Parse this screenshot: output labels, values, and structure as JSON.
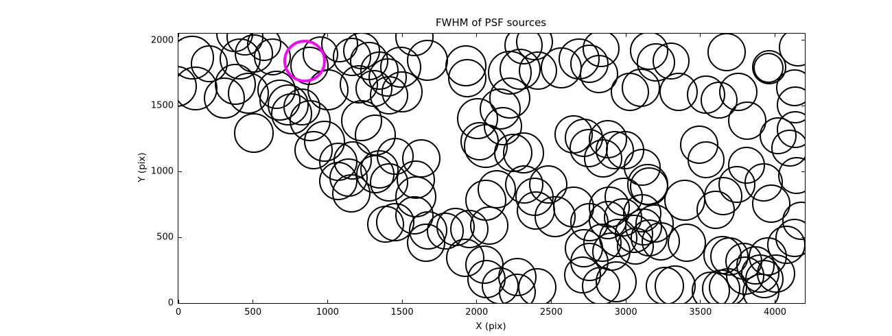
{
  "chart_data": {
    "type": "scatter",
    "title": "FWHM of PSF sources",
    "xlabel": "X (pix)",
    "ylabel": "Y (pix)",
    "xlim": [
      0,
      4200
    ],
    "ylim": [
      0,
      2050
    ],
    "xticks": [
      0,
      500,
      1000,
      1500,
      2000,
      2500,
      3000,
      3500,
      4000
    ],
    "yticks": [
      0,
      500,
      1000,
      1500,
      2000
    ],
    "grid": false,
    "legend": "none",
    "marker_style": "open-circle",
    "circle_color": "#000000",
    "circle_linewidth": 2.5,
    "highlight_color": "#ff00ff",
    "highlight_linewidth": 4.5,
    "axes_color": "#000000",
    "background_color": "#ffffff",
    "tick_length": 5,
    "highlight": {
      "x": 846,
      "y": 1841,
      "r": 143
    },
    "circles": [
      [
        92,
        1867,
        147
      ],
      [
        207,
        1820,
        124
      ],
      [
        115,
        1633,
        147
      ],
      [
        -14,
        1648,
        138
      ],
      [
        414,
        1857,
        138
      ],
      [
        506,
        1899,
        129
      ],
      [
        575,
        1972,
        115
      ],
      [
        446,
        2024,
        124
      ],
      [
        630,
        1872,
        124
      ],
      [
        382,
        1664,
        138
      ],
      [
        308,
        1560,
        138
      ],
      [
        469,
        1596,
        138
      ],
      [
        658,
        1622,
        129
      ],
      [
        681,
        1544,
        138
      ],
      [
        736,
        1507,
        138
      ],
      [
        759,
        1440,
        138
      ],
      [
        828,
        1492,
        124
      ],
      [
        883,
        1387,
        138
      ],
      [
        506,
        1294,
        133
      ],
      [
        879,
        1805,
        129
      ],
      [
        952,
        1893,
        120
      ],
      [
        1003,
        1622,
        138
      ],
      [
        1081,
        1972,
        124
      ],
      [
        1164,
        1872,
        129
      ],
      [
        1228,
        1919,
        124
      ],
      [
        1279,
        1841,
        129
      ],
      [
        1348,
        1768,
        129
      ],
      [
        1403,
        1716,
        129
      ],
      [
        1210,
        1664,
        129
      ],
      [
        1311,
        1633,
        124
      ],
      [
        1412,
        1580,
        129
      ],
      [
        1228,
        1387,
        138
      ],
      [
        1320,
        1278,
        138
      ],
      [
        980,
        1231,
        138
      ],
      [
        906,
        1163,
        129
      ],
      [
        1072,
        1074,
        129
      ],
      [
        1168,
        1085,
        129
      ],
      [
        377,
        2050,
        124
      ],
      [
        1582,
        2024,
        129
      ],
      [
        1670,
        1846,
        138
      ],
      [
        1490,
        1794,
        138
      ],
      [
        1500,
        1607,
        138
      ],
      [
        1927,
        1805,
        138
      ],
      [
        1937,
        1711,
        129
      ],
      [
        2222,
        1753,
        147
      ],
      [
        2291,
        1779,
        138
      ],
      [
        2314,
        1961,
        129
      ],
      [
        2387,
        1987,
        124
      ],
      [
        2410,
        1768,
        129
      ],
      [
        2567,
        1789,
        138
      ],
      [
        2686,
        1857,
        138
      ],
      [
        2755,
        1820,
        129
      ],
      [
        2222,
        1560,
        138
      ],
      [
        2006,
        1403,
        138
      ],
      [
        2157,
        1476,
        138
      ],
      [
        2176,
        1346,
        129
      ],
      [
        2061,
        1194,
        147
      ],
      [
        2019,
        1231,
        129
      ],
      [
        2245,
        1142,
        129
      ],
      [
        2314,
        1142,
        138
      ],
      [
        2719,
        1257,
        129
      ],
      [
        2751,
        1179,
        129
      ],
      [
        2650,
        1283,
        129
      ],
      [
        1454,
        1116,
        124
      ],
      [
        1628,
        1100,
        129
      ],
      [
        2834,
        1935,
        124
      ],
      [
        2820,
        1742,
        129
      ],
      [
        3156,
        1919,
        129
      ],
      [
        3202,
        1831,
        129
      ],
      [
        3303,
        1841,
        124
      ],
      [
        3675,
        1909,
        129
      ],
      [
        3961,
        1794,
        115
      ],
      [
        3956,
        1789,
        101
      ],
      [
        4154,
        1946,
        129
      ],
      [
        3100,
        1638,
        129
      ],
      [
        3027,
        1607,
        129
      ],
      [
        3353,
        1607,
        129
      ],
      [
        3537,
        1586,
        129
      ],
      [
        3625,
        1544,
        124
      ],
      [
        3754,
        1607,
        129
      ],
      [
        3813,
        1387,
        129
      ],
      [
        4131,
        1638,
        124
      ],
      [
        4135,
        1507,
        124
      ],
      [
        4135,
        1320,
        124
      ],
      [
        4020,
        1273,
        124
      ],
      [
        4099,
        1179,
        124
      ],
      [
        3491,
        1205,
        129
      ],
      [
        3537,
        1090,
        124
      ],
      [
        2880,
        1247,
        129
      ],
      [
        2926,
        1163,
        129
      ],
      [
        2995,
        1163,
        129
      ],
      [
        2847,
        1100,
        129
      ],
      [
        3809,
        1048,
        124
      ],
      [
        3110,
        1033,
        124
      ],
      [
        1072,
        928,
        129
      ],
      [
        1141,
        955,
        129
      ],
      [
        1159,
        835,
        129
      ],
      [
        1320,
        981,
        129
      ],
      [
        1348,
        1017,
        129
      ],
      [
        1412,
        918,
        129
      ],
      [
        1389,
        600,
        124
      ],
      [
        1592,
        939,
        129
      ],
      [
        1592,
        808,
        138
      ],
      [
        1582,
        668,
        129
      ],
      [
        1454,
        616,
        129
      ],
      [
        1674,
        553,
        129
      ],
      [
        1661,
        459,
        129
      ],
      [
        1789,
        548,
        124
      ],
      [
        1858,
        579,
        129
      ],
      [
        1950,
        563,
        129
      ],
      [
        1923,
        344,
        129
      ],
      [
        2061,
        782,
        138
      ],
      [
        2084,
        589,
        129
      ],
      [
        2052,
        292,
        129
      ],
      [
        2065,
        183,
        129
      ],
      [
        2157,
        130,
        124
      ],
      [
        2272,
        198,
        129
      ],
      [
        2387,
        808,
        129
      ],
      [
        2397,
        704,
        129
      ],
      [
        2479,
        902,
        129
      ],
      [
        2525,
        657,
        138
      ],
      [
        2650,
        730,
        138
      ],
      [
        2755,
        616,
        129
      ],
      [
        2719,
        417,
        129
      ],
      [
        2755,
        313,
        129
      ],
      [
        2709,
        214,
        124
      ],
      [
        2272,
        83,
        124
      ],
      [
        2406,
        120,
        129
      ],
      [
        2318,
        902,
        129
      ],
      [
        2134,
        866,
        129
      ],
      [
        3146,
        902,
        138
      ],
      [
        3156,
        887,
        129
      ],
      [
        2986,
        808,
        129
      ],
      [
        2889,
        730,
        138
      ],
      [
        2880,
        631,
        129
      ],
      [
        2981,
        652,
        129
      ],
      [
        3110,
        683,
        129
      ],
      [
        3119,
        579,
        124
      ],
      [
        3192,
        605,
        129
      ],
      [
        3054,
        527,
        129
      ],
      [
        2949,
        496,
        129
      ],
      [
        2843,
        459,
        129
      ],
      [
        2903,
        391,
        129
      ],
      [
        3064,
        433,
        124
      ],
      [
        3156,
        496,
        124
      ],
      [
        3234,
        470,
        129
      ],
      [
        3395,
        782,
        138
      ],
      [
        3602,
        709,
        129
      ],
      [
        3652,
        814,
        129
      ],
      [
        3744,
        902,
        124
      ],
      [
        3924,
        918,
        129
      ],
      [
        3974,
        756,
        129
      ],
      [
        3409,
        459,
        129
      ],
      [
        3648,
        365,
        129
      ],
      [
        3694,
        355,
        129
      ],
      [
        3790,
        318,
        124
      ],
      [
        3869,
        287,
        129
      ],
      [
        3929,
        183,
        129
      ],
      [
        4007,
        224,
        129
      ],
      [
        3952,
        355,
        129
      ],
      [
        4076,
        443,
        129
      ],
      [
        4131,
        496,
        129
      ],
      [
        4177,
        626,
        129
      ],
      [
        4145,
        970,
        124
      ],
      [
        2935,
        162,
        138
      ],
      [
        2834,
        130,
        129
      ],
      [
        3261,
        130,
        129
      ],
      [
        3330,
        130,
        138
      ],
      [
        3570,
        94,
        129
      ],
      [
        3639,
        110,
        129
      ],
      [
        3685,
        120,
        129
      ],
      [
        3800,
        209,
        129
      ],
      [
        3901,
        224,
        129
      ],
      [
        3905,
        83,
        124
      ]
    ]
  }
}
